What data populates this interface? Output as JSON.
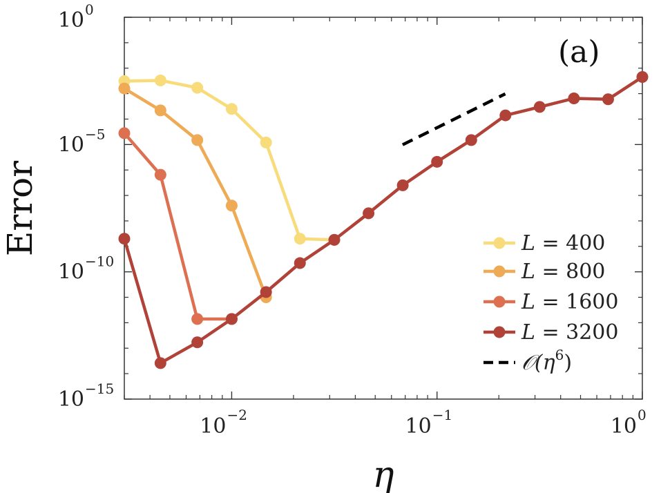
{
  "chart_data": {
    "type": "line",
    "xscale": "log",
    "yscale": "log",
    "xlim": [
      0.003,
      1
    ],
    "ylim": [
      1e-15,
      1
    ],
    "xlabel": "η",
    "ylabel": "Error",
    "panel_label": "(a)",
    "x_ticks": [
      {
        "base": "10",
        "exp": "−2",
        "value": 0.01
      },
      {
        "base": "10",
        "exp": "−1",
        "value": 0.1
      },
      {
        "base": "10",
        "exp": "0",
        "value": 1
      }
    ],
    "y_ticks": [
      {
        "base": "10",
        "exp": "0",
        "value": 1
      },
      {
        "base": "10",
        "exp": "−5",
        "value": 1e-05
      },
      {
        "base": "10",
        "exp": "−10",
        "value": 1e-10
      },
      {
        "base": "10",
        "exp": "−15",
        "value": 1e-15
      }
    ],
    "legend_position": "bottom-right",
    "series": [
      {
        "name": "L = 400",
        "legend_var": "L",
        "legend_val": " = 400",
        "color": "#F8DC7C",
        "points": [
          [
            0.003,
            0.0031
          ],
          [
            0.0045,
            0.0033
          ],
          [
            0.0068,
            0.0017
          ],
          [
            0.01,
            0.00025
          ],
          [
            0.0147,
            1.2e-05
          ],
          [
            0.0215,
            2e-09
          ],
          [
            0.0316,
            1.8e-09
          ]
        ]
      },
      {
        "name": "L = 800",
        "legend_var": "L",
        "legend_val": " = 800",
        "color": "#EEAA55",
        "points": [
          [
            0.003,
            0.0016
          ],
          [
            0.0045,
            0.00022
          ],
          [
            0.0068,
            1.5e-05
          ],
          [
            0.01,
            4e-08
          ],
          [
            0.0147,
            1e-11
          ]
        ]
      },
      {
        "name": "L = 1600",
        "legend_var": "L",
        "legend_val": " = 1600",
        "color": "#DD7050",
        "points": [
          [
            0.003,
            2.8e-05
          ],
          [
            0.0045,
            6.5e-07
          ],
          [
            0.0068,
            1.4e-12
          ],
          [
            0.01,
            1.4e-12
          ]
        ]
      },
      {
        "name": "L = 3200",
        "legend_var": "L",
        "legend_val": " = 3200",
        "color": "#B04238",
        "points": [
          [
            0.003,
            2e-09
          ],
          [
            0.0045,
            2.6e-14
          ],
          [
            0.0068,
            1.7e-13
          ],
          [
            0.01,
            1.4e-12
          ],
          [
            0.0147,
            1.6e-11
          ],
          [
            0.0215,
            2.2e-10
          ],
          [
            0.0316,
            1.8e-09
          ],
          [
            0.0464,
            2e-08
          ],
          [
            0.0681,
            2.5e-07
          ],
          [
            0.1,
            2.1e-06
          ],
          [
            0.1468,
            1.5e-05
          ],
          [
            0.2154,
            0.00014
          ],
          [
            0.3162,
            0.0003
          ],
          [
            0.4642,
            0.00065
          ],
          [
            0.6813,
            0.0006
          ],
          [
            1.0,
            0.0045
          ]
        ]
      }
    ],
    "reference_line": {
      "name": "O(η^6)",
      "legend_text": "𝒪(η",
      "legend_exp": "6",
      "legend_close": ")",
      "color": "#000000",
      "style": "dashed",
      "points": [
        [
          0.068,
          9.8e-06
        ],
        [
          0.215,
          0.00098
        ]
      ]
    }
  }
}
